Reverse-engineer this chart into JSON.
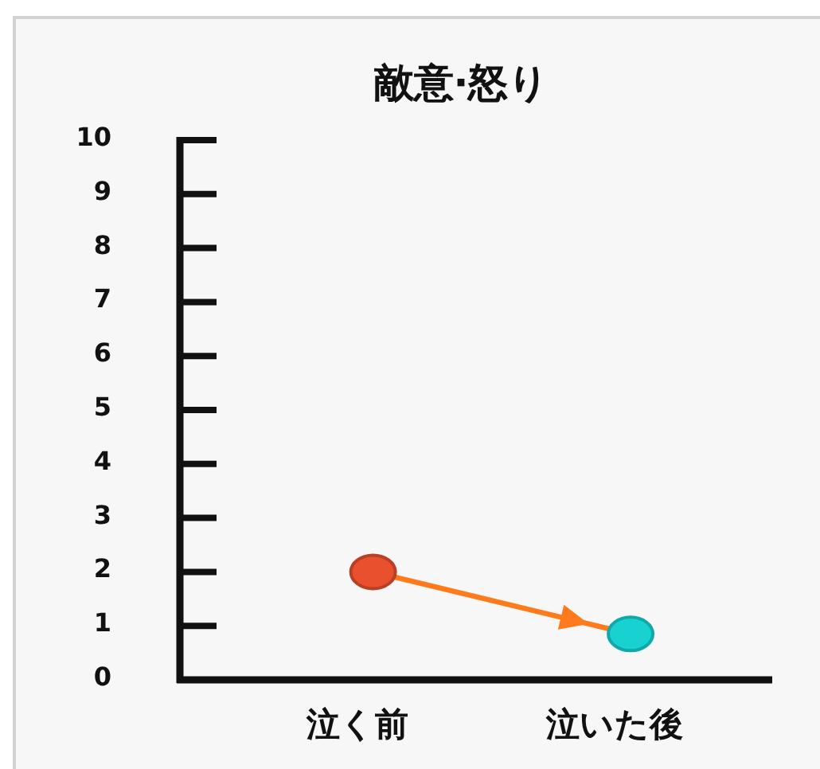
{
  "chart_data": {
    "type": "line",
    "title": "敵意·怒り",
    "categories": [
      "泣く前",
      "泣いた後"
    ],
    "series": [
      {
        "color": "#ff7a1a",
        "colors": [
          "#e8502e",
          "#18d2d2"
        ],
        "values": [
          2,
          0.85
        ]
      }
    ],
    "ylim": [
      0,
      10
    ],
    "yticks": [
      0,
      1,
      2,
      3,
      4,
      5,
      6,
      7,
      8,
      9,
      10
    ],
    "marker": "circle",
    "line_style": "solid"
  }
}
